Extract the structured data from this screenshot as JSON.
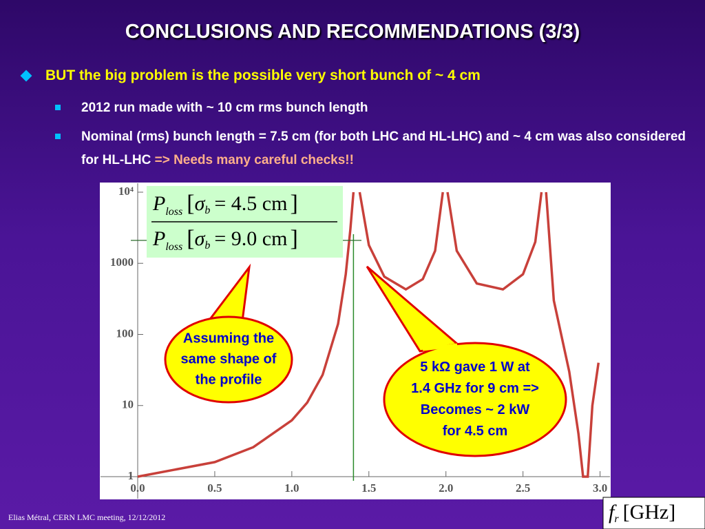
{
  "title": "CONCLUSIONS AND RECOMMENDATIONS (3/3)",
  "bullet": "BUT the big problem is the possible very short bunch of ~ 4 cm",
  "sub_bullets": [
    {
      "text": "2012 run made with ~ 10 cm rms bunch length"
    },
    {
      "text": "Nominal (rms) bunch length = 7.5 cm (for both LHC and HL-LHC) and ~ 4 cm was also considered for HL-LHC",
      "highlight": "=> Needs many careful checks!!"
    }
  ],
  "footer": "Elias Métral, CERN LMC meeting, 12/12/2012",
  "formula": {
    "symbol": "P",
    "sub": "loss",
    "var": "σ",
    "var_sub": "b",
    "numerator": "= 4.5 cm",
    "denominator": "= 9.0 cm"
  },
  "callouts": [
    {
      "lines": [
        "Assuming the",
        "same shape of",
        "the profile"
      ]
    },
    {
      "lines": [
        "5 kΩ gave 1 W at",
        "1.4 GHz for 9 cm =>",
        "Becomes ~ 2 kW",
        "for 4.5 cm"
      ]
    }
  ],
  "x_axis_label": {
    "symbol": "f",
    "sub": "r",
    "unit": "[GHz]"
  },
  "chart_data": {
    "type": "line",
    "color": "#c8403a",
    "log_y": true,
    "vline": 1.4,
    "vline_color": "#2a8a2a",
    "x": [
      0,
      0.5,
      0.75,
      1.0,
      1.1,
      1.2,
      1.3,
      1.35,
      1.38,
      1.4,
      1.42,
      1.44,
      1.5,
      1.6,
      1.74,
      1.85,
      1.93,
      1.98,
      2.0,
      2.01,
      2.07,
      2.2,
      2.37,
      2.5,
      2.58,
      2.62,
      2.635,
      2.65,
      2.7,
      2.8,
      2.86,
      2.89,
      2.92,
      2.95,
      2.99
    ],
    "values": [
      1,
      1.6,
      2.6,
      6.2,
      11,
      27,
      140,
      700,
      3000,
      10000,
      null,
      10000,
      1800,
      650,
      430,
      600,
      1500,
      10000,
      null,
      10000,
      1500,
      520,
      430,
      700,
      2000,
      10000,
      null,
      10000,
      300,
      30,
      4,
      1,
      1,
      10,
      40
    ],
    "xlim": [
      0,
      3.06
    ],
    "ylim": [
      1,
      10000
    ],
    "xticks": [
      {
        "value": 0,
        "label": "0.0"
      },
      0.5,
      {
        "value": 1,
        "label": "1.0"
      },
      1.5,
      {
        "value": 2,
        "label": "2.0"
      },
      2.5,
      {
        "value": 3,
        "label": "3.0"
      }
    ],
    "yticks": [
      1,
      10,
      100,
      1000,
      {
        "value": 10000,
        "label": "10⁴"
      }
    ]
  }
}
